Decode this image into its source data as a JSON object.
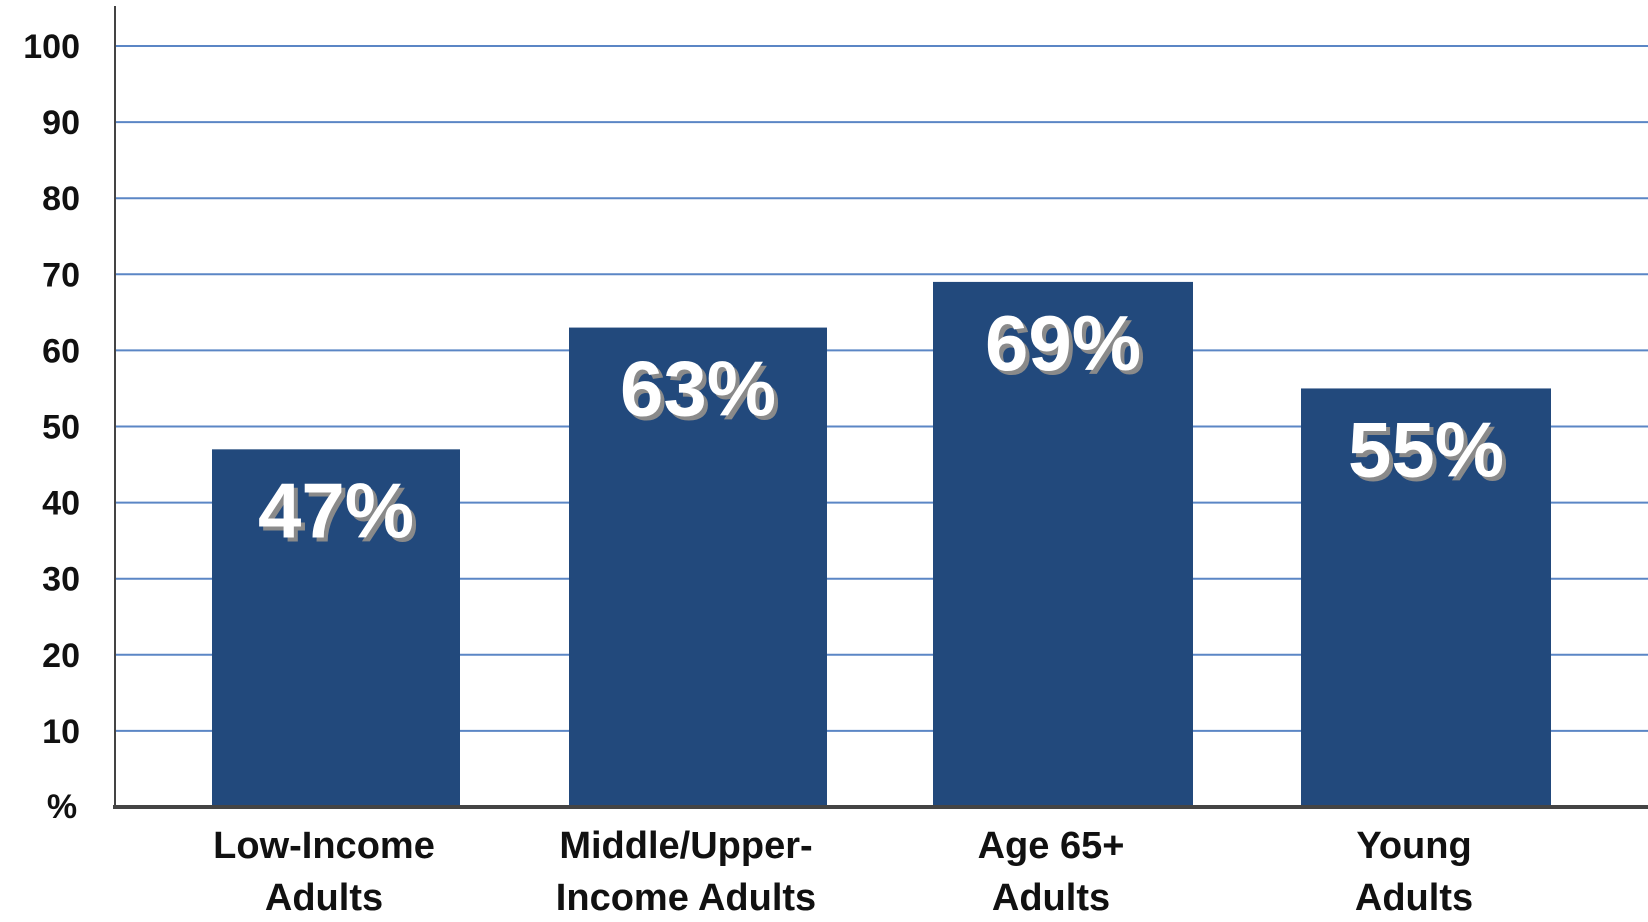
{
  "chart_data": {
    "type": "bar",
    "categories": [
      [
        "Low-Income",
        "Adults"
      ],
      [
        "Middle/Upper-",
        "Income Adults"
      ],
      [
        "Age 65+",
        "Adults"
      ],
      [
        "Young",
        "Adults"
      ]
    ],
    "values": [
      47,
      63,
      69,
      55
    ],
    "data_labels": [
      "47%",
      "63%",
      "69%",
      "55%"
    ],
    "y_unit_label": "%",
    "yticks": [
      100,
      90,
      80,
      70,
      60,
      50,
      40,
      30,
      20,
      10
    ],
    "ylim": [
      0,
      100
    ],
    "grid": true,
    "legend": "none",
    "bar_color": "#22497c"
  }
}
